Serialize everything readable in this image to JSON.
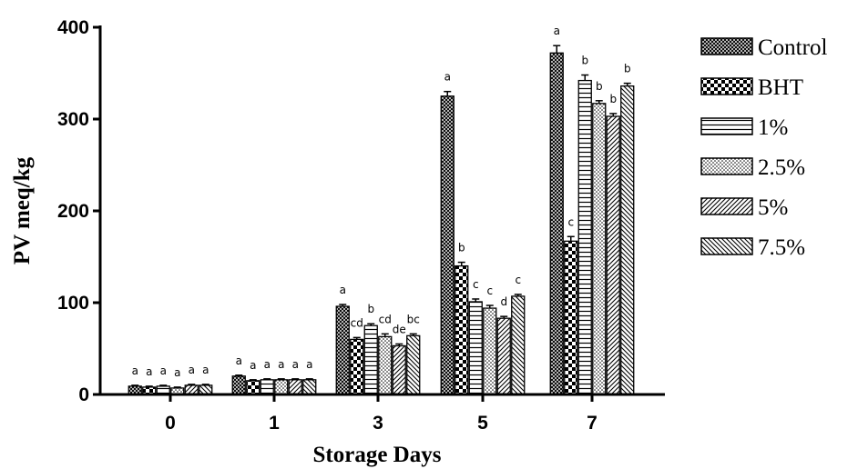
{
  "chart_data": {
    "type": "bar",
    "xlabel": "Storage Days",
    "ylabel": "PV meq/kg",
    "ylim": [
      0,
      400
    ],
    "yticks": [
      0,
      100,
      200,
      300,
      400
    ],
    "categories": [
      "0",
      "1",
      "3",
      "5",
      "7"
    ],
    "legend_position": "right",
    "series": [
      {
        "name": "Control",
        "pattern": "crosshatch",
        "values": [
          9,
          20,
          96,
          325,
          372
        ],
        "errors": [
          1,
          1,
          2,
          5,
          8
        ],
        "labels": [
          "a",
          "a",
          "a",
          "a",
          "a"
        ]
      },
      {
        "name": "BHT",
        "pattern": "checker",
        "values": [
          8,
          15,
          60,
          140,
          167
        ],
        "errors": [
          1,
          1,
          2,
          4,
          5
        ],
        "labels": [
          "a",
          "a",
          "cd",
          "b",
          "c"
        ]
      },
      {
        "name": "1%",
        "pattern": "horizontal",
        "values": [
          9,
          16,
          75,
          101,
          342
        ],
        "errors": [
          1,
          1,
          2,
          3,
          6
        ],
        "labels": [
          "a",
          "a",
          "b",
          "c",
          "b"
        ]
      },
      {
        "name": "2.5%",
        "pattern": "dots",
        "values": [
          7,
          16,
          63,
          94,
          317
        ],
        "errors": [
          1,
          1,
          3,
          3,
          3
        ],
        "labels": [
          "a",
          "a",
          "cd",
          "c",
          "b"
        ]
      },
      {
        "name": "5%",
        "pattern": "diagonal-up",
        "values": [
          10,
          16,
          53,
          83,
          303
        ],
        "errors": [
          1,
          1,
          2,
          2,
          3
        ],
        "labels": [
          "a",
          "a",
          "de",
          "d",
          "b"
        ]
      },
      {
        "name": "7.5%",
        "pattern": "diagonal-down",
        "values": [
          10,
          16,
          64,
          107,
          336
        ],
        "errors": [
          1,
          1,
          2,
          2,
          3
        ],
        "labels": [
          "a",
          "a",
          "bc",
          "c",
          "b"
        ]
      }
    ]
  }
}
